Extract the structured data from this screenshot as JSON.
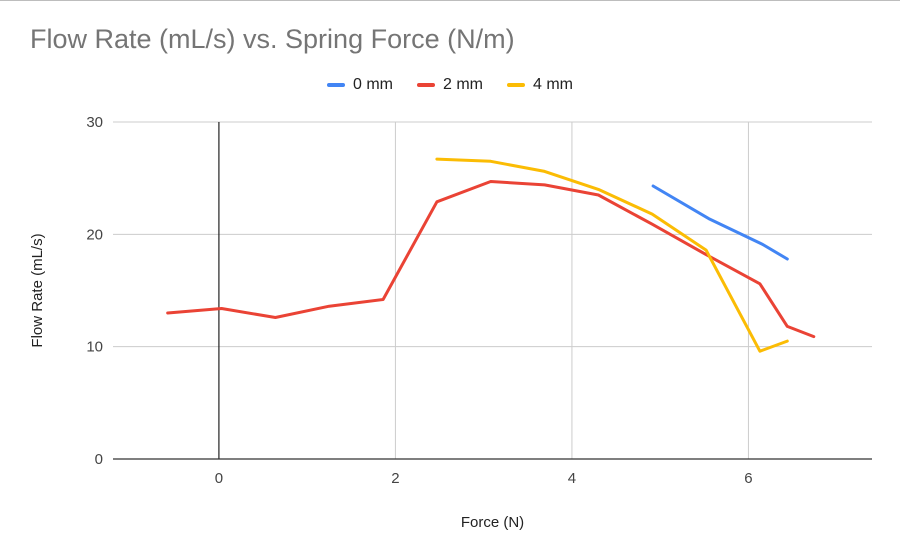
{
  "chart_data": {
    "type": "line",
    "title": "Flow Rate (mL/s) vs. Spring Force (N/m)",
    "xlabel": "Force (N)",
    "ylabel": "Flow Rate (mL/s)",
    "xlim": [
      -1.2,
      7.4
    ],
    "ylim": [
      0,
      30
    ],
    "x_ticks": [
      0,
      2,
      4,
      6
    ],
    "y_ticks": [
      0,
      10,
      20,
      30
    ],
    "grid": true,
    "legend_position": "top",
    "series": [
      {
        "name": "0 mm",
        "color": "#4285f4",
        "points": [
          [
            4.92,
            24.3
          ],
          [
            5.55,
            21.4
          ],
          [
            6.16,
            19.1
          ],
          [
            6.44,
            17.8
          ]
        ]
      },
      {
        "name": "2 mm",
        "color": "#ea4335",
        "points": [
          [
            -0.58,
            13.0
          ],
          [
            0.03,
            13.4
          ],
          [
            0.64,
            12.6
          ],
          [
            1.25,
            13.6
          ],
          [
            1.86,
            14.2
          ],
          [
            2.47,
            22.9
          ],
          [
            3.08,
            24.7
          ],
          [
            3.69,
            24.4
          ],
          [
            4.3,
            23.5
          ],
          [
            4.91,
            20.9
          ],
          [
            5.52,
            18.2
          ],
          [
            6.13,
            15.6
          ],
          [
            6.44,
            11.8
          ],
          [
            6.74,
            10.9
          ]
        ]
      },
      {
        "name": "4 mm",
        "color": "#fbbc04",
        "points": [
          [
            2.47,
            26.7
          ],
          [
            3.08,
            26.5
          ],
          [
            3.69,
            25.6
          ],
          [
            4.3,
            24.0
          ],
          [
            4.91,
            21.8
          ],
          [
            5.52,
            18.6
          ],
          [
            6.13,
            9.6
          ],
          [
            6.44,
            10.5
          ]
        ]
      }
    ]
  }
}
